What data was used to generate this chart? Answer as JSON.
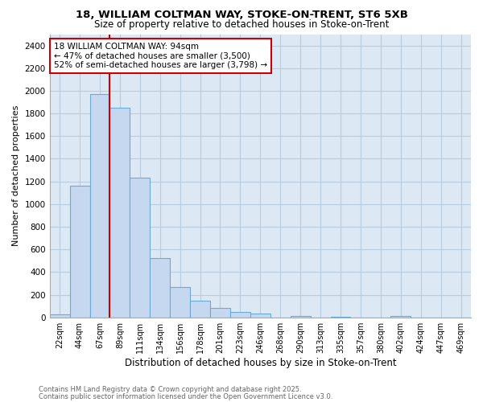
{
  "title1": "18, WILLIAM COLTMAN WAY, STOKE-ON-TRENT, ST6 5XB",
  "title2": "Size of property relative to detached houses in Stoke-on-Trent",
  "xlabel": "Distribution of detached houses by size in Stoke-on-Trent",
  "ylabel": "Number of detached properties",
  "bar_labels": [
    "22sqm",
    "44sqm",
    "67sqm",
    "89sqm",
    "111sqm",
    "134sqm",
    "156sqm",
    "178sqm",
    "201sqm",
    "223sqm",
    "246sqm",
    "268sqm",
    "290sqm",
    "313sqm",
    "335sqm",
    "357sqm",
    "380sqm",
    "402sqm",
    "424sqm",
    "447sqm",
    "469sqm"
  ],
  "bar_values": [
    25,
    1160,
    1970,
    1850,
    1230,
    520,
    270,
    150,
    85,
    45,
    35,
    0,
    15,
    0,
    5,
    0,
    0,
    15,
    0,
    0,
    0
  ],
  "bar_color": "#c5d8f0",
  "bar_edge_color": "#6aaad4",
  "red_line_index": 3,
  "annotation_text": "18 WILLIAM COLTMAN WAY: 94sqm\n← 47% of detached houses are smaller (3,500)\n52% of semi-detached houses are larger (3,798) →",
  "annotation_box_color": "#ffffff",
  "annotation_box_edge": "#cc0000",
  "plot_bg_color": "#dce9f5",
  "fig_bg_color": "#ffffff",
  "grid_color": "#b8ccdf",
  "footer1": "Contains HM Land Registry data © Crown copyright and database right 2025.",
  "footer2": "Contains public sector information licensed under the Open Government Licence v3.0.",
  "ylim": [
    0,
    2500
  ],
  "yticks": [
    0,
    200,
    400,
    600,
    800,
    1000,
    1200,
    1400,
    1600,
    1800,
    2000,
    2200,
    2400
  ]
}
